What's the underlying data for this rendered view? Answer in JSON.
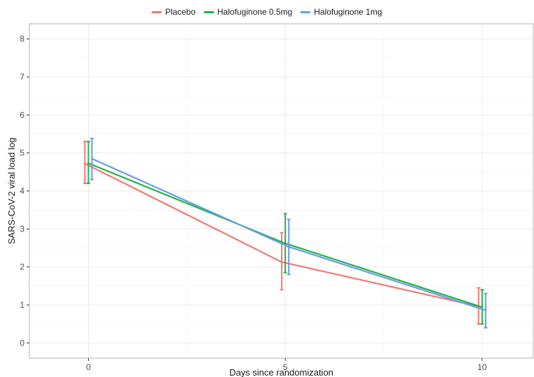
{
  "chart_data": {
    "type": "line",
    "xlabel": "Days since randomization",
    "ylabel": "SARS-CoV-2 viral load log",
    "x": [
      0,
      5,
      10
    ],
    "xlim": [
      -1.5,
      11.3
    ],
    "ylim": [
      -0.4,
      8.4
    ],
    "xticks": [
      0,
      5,
      10
    ],
    "yticks": [
      0,
      1,
      2,
      3,
      4,
      5,
      6,
      7,
      8
    ],
    "grid": true,
    "legend_position": "top",
    "series": [
      {
        "name": "Placebo",
        "color": "#F07A72",
        "values": [
          4.72,
          2.13,
          0.96
        ],
        "error_low": [
          4.2,
          1.4,
          0.5
        ],
        "error_high": [
          5.3,
          2.9,
          1.45
        ]
      },
      {
        "name": "Halofuginone 0.5mg",
        "color": "#22B14C",
        "values": [
          4.73,
          2.62,
          0.94
        ],
        "error_low": [
          4.2,
          1.85,
          0.5
        ],
        "error_high": [
          5.3,
          3.4,
          1.4
        ]
      },
      {
        "name": "Halofuginone 1mg",
        "color": "#6A9BE8",
        "values": [
          4.85,
          2.53,
          0.86
        ],
        "error_low": [
          4.3,
          1.8,
          0.4
        ],
        "error_high": [
          5.38,
          3.25,
          1.3
        ]
      }
    ]
  }
}
